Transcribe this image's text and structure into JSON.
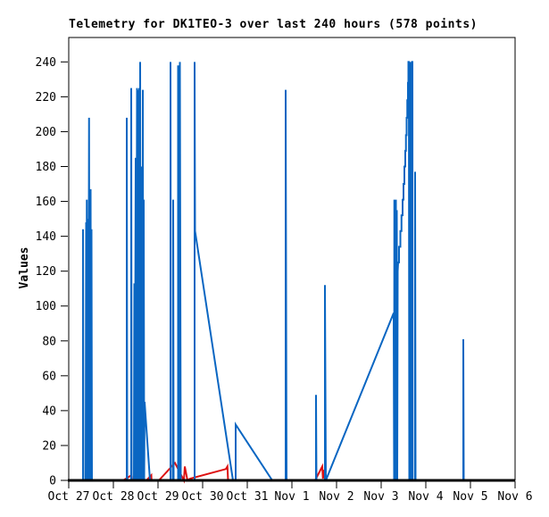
{
  "meta": {
    "station": "DK1TEO-3",
    "window_hours": 240,
    "point_count": 578
  },
  "colors": {
    "background": "#ffffff",
    "axis": "#000000",
    "text": "#000000",
    "series_blue": "#0a66c2",
    "series_red": "#dd1111"
  },
  "chart_data": {
    "type": "line",
    "title": "Telemetry for DK1TEO-3 over last 240 hours (578 points)",
    "xlabel": "",
    "ylabel": "Values",
    "grid": false,
    "legend_position": "none",
    "x_unit": "days since Oct 27",
    "x_range_days": [
      0,
      10
    ],
    "x_tick_labels": [
      "Oct 27",
      "Oct 28",
      "Oct 29",
      "Oct 30",
      "Oct 31",
      "Nov 1",
      "Nov 2",
      "Nov 3",
      "Nov 4",
      "Nov 5",
      "Nov 6"
    ],
    "y_ticks": [
      0,
      20,
      40,
      60,
      80,
      100,
      120,
      140,
      160,
      180,
      200,
      220,
      240
    ],
    "ylim": [
      0,
      254
    ],
    "series": [
      {
        "name": "telemetry-red",
        "color": "#dd1111",
        "stroke_width": 2,
        "segments": [
          [
            [
              1.22,
              0
            ],
            [
              1.41,
              3
            ],
            [
              1.42,
              0
            ]
          ],
          [
            [
              1.49,
              0
            ],
            [
              1.63,
              4
            ],
            [
              1.645,
              6
            ],
            [
              1.65,
              0
            ]
          ],
          [
            [
              1.74,
              0
            ],
            [
              1.85,
              3
            ],
            [
              1.855,
              0
            ]
          ],
          [
            [
              2.02,
              0
            ],
            [
              2.38,
              10
            ],
            [
              2.56,
              1
            ],
            [
              2.58,
              0
            ],
            [
              2.6,
              8
            ],
            [
              2.66,
              0
            ],
            [
              2.72,
              1
            ],
            [
              3.52,
              6.5
            ],
            [
              3.555,
              8
            ],
            [
              3.57,
              0
            ]
          ],
          [
            [
              5.52,
              0
            ],
            [
              5.68,
              8
            ],
            [
              5.695,
              1
            ],
            [
              5.72,
              6
            ],
            [
              5.745,
              0
            ]
          ]
        ]
      },
      {
        "name": "telemetry-blue",
        "color": "#0a66c2",
        "stroke_width": 2,
        "segments": [
          [
            [
              0,
              0
            ],
            [
              0.32,
              0
            ],
            [
              0.32,
              144
            ],
            [
              0.33,
              0
            ],
            [
              0.38,
              0
            ],
            [
              0.39,
              148
            ],
            [
              0.4,
              0
            ],
            [
              0.405,
              161
            ],
            [
              0.42,
              0
            ],
            [
              0.43,
              150
            ],
            [
              0.44,
              0
            ],
            [
              0.455,
              208
            ],
            [
              0.465,
              0
            ],
            [
              0.47,
              145
            ],
            [
              0.485,
              0
            ],
            [
              0.49,
              167
            ],
            [
              0.5,
              0
            ],
            [
              0.51,
              144
            ],
            [
              0.52,
              0
            ],
            [
              1.3,
              0
            ],
            [
              1.3,
              208
            ],
            [
              1.31,
              0
            ],
            [
              1.4,
              0
            ],
            [
              1.4,
              225
            ],
            [
              1.41,
              0
            ],
            [
              1.46,
              0
            ],
            [
              1.47,
              113
            ],
            [
              1.48,
              0
            ],
            [
              1.5,
              185
            ],
            [
              1.51,
              0
            ],
            [
              1.53,
              225
            ],
            [
              1.545,
              0
            ],
            [
              1.56,
              224
            ],
            [
              1.57,
              0
            ],
            [
              1.58,
              225
            ],
            [
              1.59,
              0
            ],
            [
              1.6,
              240
            ],
            [
              1.61,
              0
            ],
            [
              1.62,
              180
            ],
            [
              1.63,
              0
            ],
            [
              1.645,
              150
            ],
            [
              1.655,
              0
            ],
            [
              1.66,
              224
            ],
            [
              1.67,
              0
            ],
            [
              1.68,
              161
            ],
            [
              1.69,
              0
            ],
            [
              1.7,
              45
            ],
            [
              1.82,
              0
            ],
            [
              2.28,
              0
            ],
            [
              2.28,
              240
            ],
            [
              2.29,
              0
            ],
            [
              2.34,
              0
            ],
            [
              2.34,
              161
            ],
            [
              2.35,
              0
            ],
            [
              2.45,
              0
            ],
            [
              2.45,
              238
            ],
            [
              2.46,
              0
            ],
            [
              2.49,
              0
            ],
            [
              2.49,
              240
            ],
            [
              2.51,
              0
            ],
            [
              2.82,
              0
            ],
            [
              2.82,
              240
            ],
            [
              2.83,
              143
            ],
            [
              3.68,
              0
            ],
            [
              3.74,
              0
            ],
            [
              3.74,
              32
            ],
            [
              4.56,
              0
            ],
            [
              4.86,
              0
            ],
            [
              4.86,
              224
            ],
            [
              4.88,
              0
            ],
            [
              5.54,
              0
            ],
            [
              5.54,
              49
            ],
            [
              5.55,
              0
            ],
            [
              5.74,
              0
            ],
            [
              5.74,
              112
            ],
            [
              5.76,
              0
            ],
            [
              7.28,
              96
            ],
            [
              7.29,
              0
            ],
            [
              7.295,
              161
            ],
            [
              7.3,
              0
            ],
            [
              7.31,
              160
            ],
            [
              7.32,
              0
            ],
            [
              7.33,
              161
            ],
            [
              7.34,
              0
            ],
            [
              7.35,
              155
            ],
            [
              7.36,
              0
            ],
            [
              7.37,
              120
            ],
            [
              7.38,
              125
            ],
            [
              7.4,
              125
            ],
            [
              7.4,
              134
            ],
            [
              7.43,
              134
            ],
            [
              7.43,
              143
            ],
            [
              7.455,
              143
            ],
            [
              7.455,
              152
            ],
            [
              7.48,
              152
            ],
            [
              7.48,
              161
            ],
            [
              7.5,
              161
            ],
            [
              7.5,
              170
            ],
            [
              7.52,
              170
            ],
            [
              7.52,
              180
            ],
            [
              7.54,
              180
            ],
            [
              7.54,
              189
            ],
            [
              7.555,
              189
            ],
            [
              7.555,
              198
            ],
            [
              7.57,
              198
            ],
            [
              7.57,
              208
            ],
            [
              7.585,
              208
            ],
            [
              7.585,
              218
            ],
            [
              7.6,
              218
            ],
            [
              7.6,
              228
            ],
            [
              7.61,
              228
            ],
            [
              7.61,
              240
            ],
            [
              7.62,
              240
            ],
            [
              7.63,
              0
            ],
            [
              7.64,
              239
            ],
            [
              7.645,
              0
            ],
            [
              7.655,
              240
            ],
            [
              7.66,
              0
            ],
            [
              7.67,
              239
            ],
            [
              7.68,
              0
            ],
            [
              7.69,
              240
            ],
            [
              7.7,
              240
            ],
            [
              7.705,
              0
            ],
            [
              7.76,
              0
            ],
            [
              7.76,
              177
            ],
            [
              7.77,
              0
            ],
            [
              8.84,
              0
            ],
            [
              8.84,
              81
            ],
            [
              8.85,
              0
            ],
            [
              10,
              0
            ]
          ]
        ]
      }
    ]
  }
}
